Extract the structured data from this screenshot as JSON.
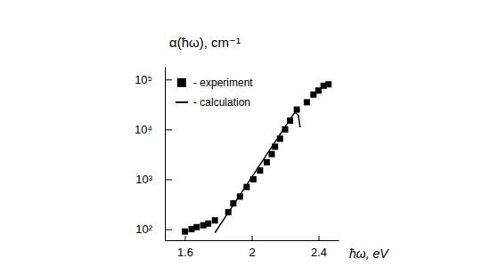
{
  "chart_data": {
    "type": "scatter",
    "y_label": "α(ħω), cm⁻¹",
    "x_label": "ħω, eV",
    "log": "y",
    "legend": "top-left",
    "xlim": [
      1.48,
      2.52
    ],
    "xticks": [
      1.6,
      2,
      2.4
    ],
    "ylim": [
      60,
      180000
    ],
    "yticks": [
      {
        "value": 100,
        "label": "10²"
      },
      {
        "value": 1000,
        "label": "10³"
      },
      {
        "value": 10000,
        "label": "10⁴"
      },
      {
        "value": 100000,
        "label": "10⁵"
      }
    ],
    "series": [
      {
        "name": "- experiment",
        "type": "scatter",
        "marker": "square",
        "color": "#000000",
        "x": [
          1.6,
          1.64,
          1.67,
          1.71,
          1.74,
          1.78,
          1.86,
          1.89,
          1.93,
          1.97,
          2.01,
          2.05,
          2.09,
          2.12,
          2.14,
          2.17,
          2.2,
          2.23,
          2.27,
          2.33,
          2.37,
          2.4,
          2.43,
          2.46
        ],
        "values": [
          90,
          100,
          110,
          120,
          130,
          150,
          220,
          330,
          450,
          700,
          1000,
          1500,
          2200,
          3200,
          4500,
          6500,
          10000,
          15000,
          25000,
          35000,
          50000,
          60000,
          75000,
          80000
        ]
      },
      {
        "name": "- calculation",
        "type": "line",
        "line_style": "solid",
        "color": "#000000",
        "x": [
          1.78,
          2.24,
          2.26,
          2.28,
          2.29
        ],
        "values": [
          85,
          18000,
          22000,
          19000,
          11000
        ]
      }
    ]
  }
}
